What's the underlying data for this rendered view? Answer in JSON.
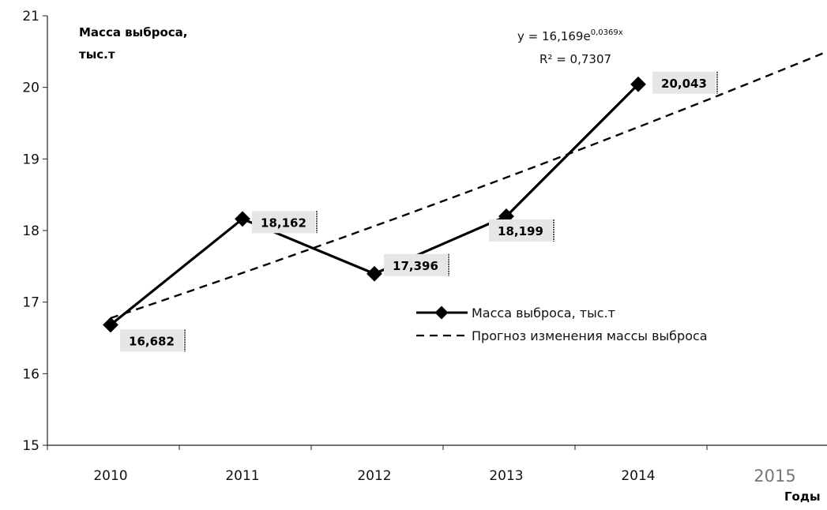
{
  "chart_data": {
    "type": "line",
    "ylabel_line1": "Масса выброса,",
    "ylabel_line2": "тыс.т",
    "xlabel": "Годы",
    "categories": [
      "2010",
      "2011",
      "2012",
      "2013",
      "2014"
    ],
    "extra_category": "2015",
    "ylim": [
      15,
      21
    ],
    "yticks": [
      "15",
      "16",
      "17",
      "18",
      "19",
      "20",
      "21"
    ],
    "series": [
      {
        "name": "Масса выброса, тыс.т",
        "values": [
          16.682,
          18.162,
          17.396,
          18.199,
          20.043
        ],
        "data_labels": [
          "16,682",
          "18,162",
          "17,396",
          "18,199",
          "20,043"
        ],
        "color": "#000000",
        "marker": "diamond"
      }
    ],
    "trendline": {
      "name": "Прогноз изменения массы выброса",
      "type": "exponential",
      "a": 16.169,
      "b": 0.0369,
      "x_start": 1,
      "x_end": 6.5,
      "style": "dashed",
      "color": "#000000",
      "equation_prefix": "y = 16,169e",
      "equation_exponent": "0,0369x",
      "r2_label": "R² = 0,7307"
    },
    "grid": false,
    "legend_position": "right-center"
  }
}
